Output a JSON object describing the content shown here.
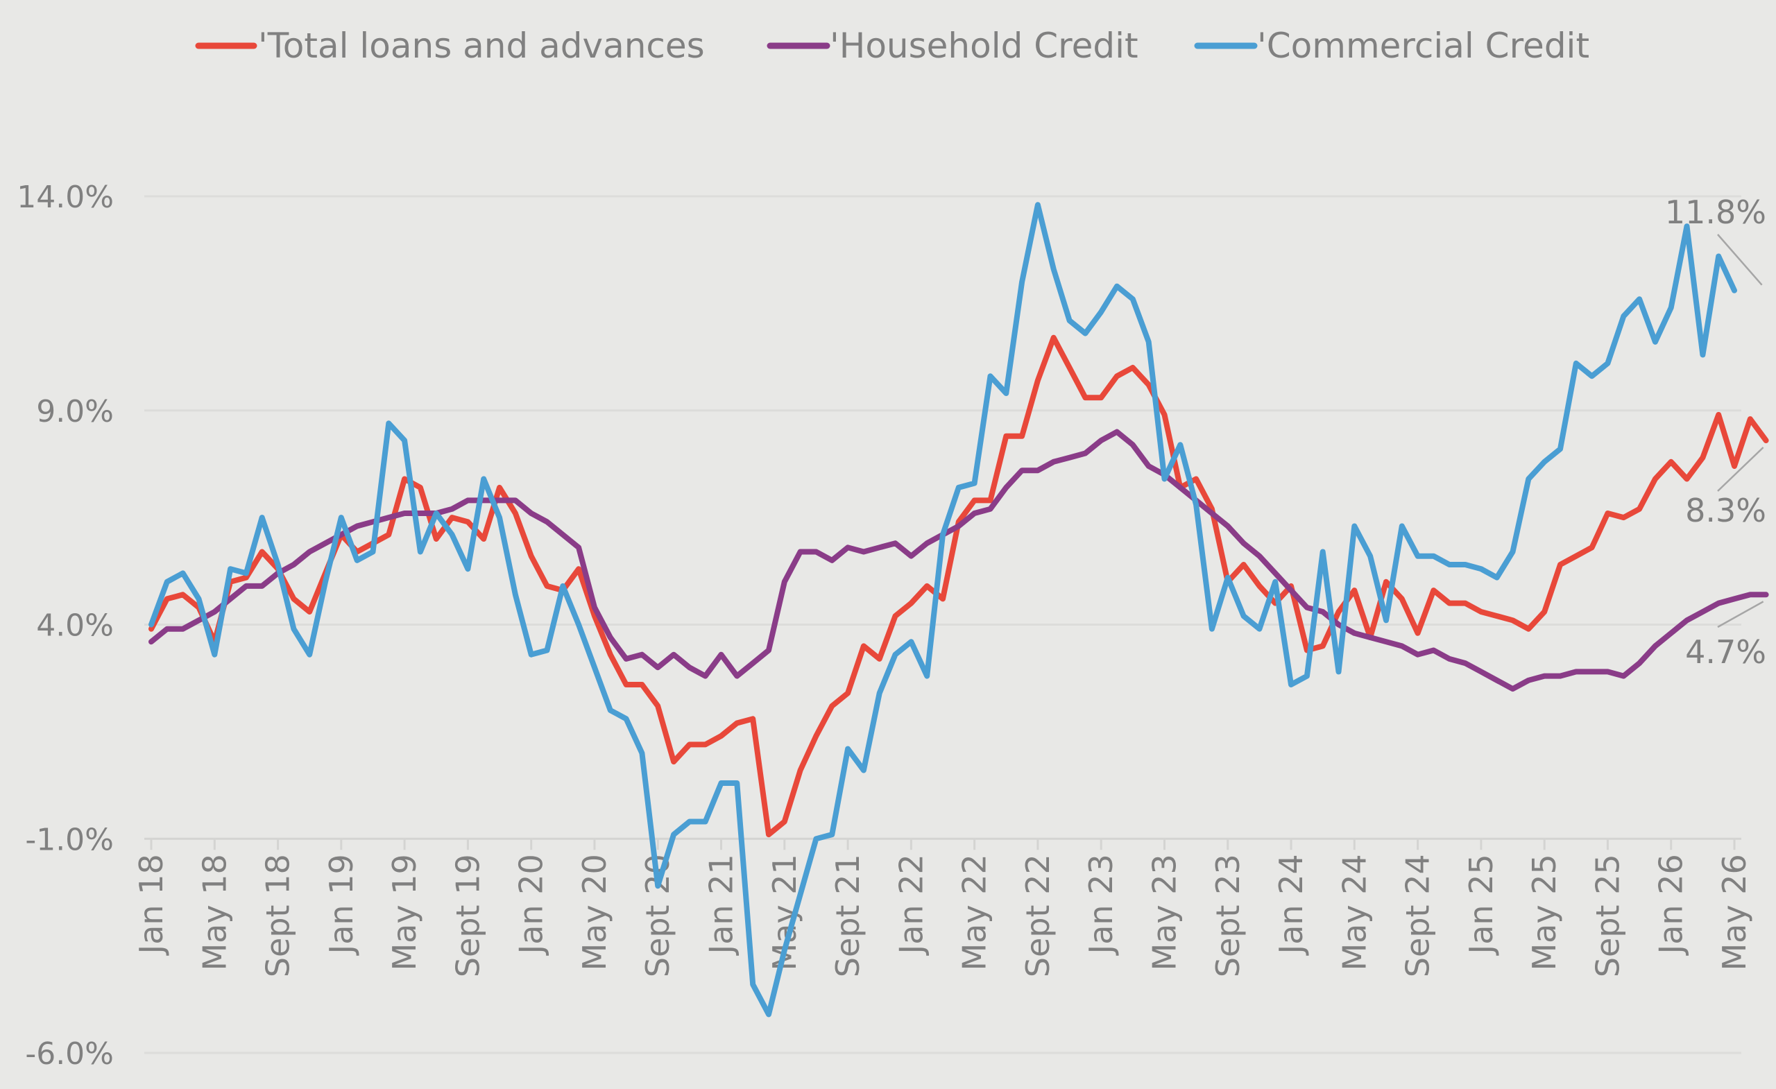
{
  "chart_data": {
    "type": "line",
    "title": "",
    "xlabel": "",
    "ylabel": "",
    "ylim": [
      -6,
      14
    ],
    "y_ticks": [
      "14.0%",
      "9.0%",
      "4.0%",
      "-1.0%",
      "-6.0%"
    ],
    "y_tick_values": [
      14,
      9,
      4,
      -1,
      -6
    ],
    "x_tick_labels": [
      "Jan 18",
      "May 18",
      "Sept 18",
      "Jan 19",
      "May 19",
      "Sept 19",
      "Jan 20",
      "May 20",
      "Sept 20",
      "Jan 21",
      "May 21",
      "Sept 21",
      "Jan 22",
      "May 22",
      "Sept 22",
      "Jan 23",
      "May 23",
      "Sept 23",
      "Jan 24",
      "May 24",
      "Sept 24",
      "Jan 25",
      "May 25",
      "Sept 25",
      "Jan 26",
      "May 26"
    ],
    "x_tick_months": [
      0,
      4,
      8,
      12,
      16,
      20,
      24,
      28,
      32,
      36,
      40,
      44,
      48,
      52,
      56,
      60,
      64,
      68,
      72,
      76,
      80,
      84,
      88,
      92,
      96,
      100
    ],
    "grid": true,
    "legend_position": "top",
    "colors": {
      "total": "#e8483a",
      "household": "#8a3c88",
      "commercial": "#4a9ed3"
    },
    "series": [
      {
        "name": "'Total loans and advances",
        "color": "#e8483a",
        "values": [
          3.9,
          4.6,
          4.7,
          4.4,
          3.6,
          5.0,
          5.1,
          5.7,
          5.3,
          4.6,
          4.3,
          5.2,
          6.1,
          5.7,
          5.9,
          6.1,
          7.4,
          7.2,
          6.0,
          6.5,
          6.4,
          6.0,
          7.2,
          6.6,
          5.6,
          4.9,
          4.8,
          5.3,
          4.2,
          3.3,
          2.6,
          2.6,
          2.1,
          0.8,
          1.2,
          1.2,
          1.4,
          1.7,
          1.8,
          -0.9,
          -0.6,
          0.6,
          1.4,
          2.1,
          2.4,
          3.5,
          3.2,
          4.2,
          4.5,
          4.9,
          4.6,
          6.4,
          6.9,
          6.9,
          8.4,
          8.4,
          9.7,
          10.7,
          10.0,
          9.3,
          9.3,
          9.8,
          10.0,
          9.6,
          8.9,
          7.2,
          7.4,
          6.7,
          5.0,
          5.4,
          4.9,
          4.5,
          4.9,
          3.4,
          3.5,
          4.3,
          4.8,
          3.7,
          5.0,
          4.6,
          3.8,
          4.8,
          4.5,
          4.5,
          4.3,
          4.2,
          4.1,
          3.9,
          4.3,
          5.4,
          5.6,
          5.8,
          6.6,
          6.5,
          6.7,
          7.4,
          7.8,
          7.4,
          7.9,
          8.9,
          7.7,
          8.8,
          8.3
        ]
      },
      {
        "name": "'Household Credit",
        "color": "#8a3c88",
        "values": [
          3.6,
          3.9,
          3.9,
          4.1,
          4.3,
          4.6,
          4.9,
          4.9,
          5.2,
          5.4,
          5.7,
          5.9,
          6.1,
          6.3,
          6.4,
          6.5,
          6.6,
          6.6,
          6.6,
          6.7,
          6.9,
          6.9,
          6.9,
          6.9,
          6.6,
          6.4,
          6.1,
          5.8,
          4.4,
          3.7,
          3.2,
          3.3,
          3.0,
          3.3,
          3.0,
          2.8,
          3.3,
          2.8,
          3.1,
          3.4,
          5.0,
          5.7,
          5.7,
          5.5,
          5.8,
          5.7,
          5.8,
          5.9,
          5.6,
          5.9,
          6.1,
          6.3,
          6.6,
          6.7,
          7.2,
          7.6,
          7.6,
          7.8,
          7.9,
          8.0,
          8.3,
          8.5,
          8.2,
          7.7,
          7.5,
          7.2,
          6.9,
          6.6,
          6.3,
          5.9,
          5.6,
          5.2,
          4.8,
          4.4,
          4.3,
          4.0,
          3.8,
          3.7,
          3.6,
          3.5,
          3.3,
          3.4,
          3.2,
          3.1,
          2.9,
          2.7,
          2.5,
          2.7,
          2.8,
          2.8,
          2.9,
          2.9,
          2.9,
          2.8,
          3.1,
          3.5,
          3.8,
          4.1,
          4.3,
          4.5,
          4.6,
          4.7,
          4.7
        ]
      },
      {
        "name": "'Commercial Credit",
        "color": "#4a9ed3",
        "values": [
          4.0,
          5.0,
          5.2,
          4.6,
          3.3,
          5.3,
          5.2,
          6.5,
          5.4,
          3.9,
          3.3,
          5.0,
          6.5,
          5.5,
          5.7,
          8.7,
          8.3,
          5.7,
          6.6,
          6.1,
          5.3,
          7.4,
          6.5,
          4.7,
          3.3,
          3.4,
          4.9,
          4.0,
          3.0,
          2.0,
          1.8,
          1.0,
          -2.1,
          -0.9,
          -0.6,
          -0.6,
          0.3,
          0.3,
          -4.4,
          -5.1,
          -3.6,
          -2.3,
          -1.0,
          -0.9,
          1.1,
          0.6,
          2.4,
          3.3,
          3.6,
          2.8,
          6.1,
          7.2,
          7.3,
          9.8,
          9.4,
          12.0,
          13.8,
          12.3,
          11.1,
          10.8,
          11.3,
          11.9,
          11.6,
          10.6,
          7.4,
          8.2,
          6.8,
          3.9,
          5.1,
          4.2,
          3.9,
          5.0,
          2.6,
          2.8,
          5.7,
          2.9,
          6.3,
          5.6,
          4.1,
          6.3,
          5.6,
          5.6,
          5.4,
          5.4,
          5.3,
          5.1,
          5.7,
          7.4,
          7.8,
          8.1,
          10.1,
          9.8,
          10.1,
          11.2,
          11.6,
          10.6,
          11.4,
          13.3,
          10.3,
          12.6,
          11.8
        ]
      }
    ],
    "end_labels": {
      "total": "8.3%",
      "household": "4.7%",
      "commercial": "11.8%"
    }
  }
}
